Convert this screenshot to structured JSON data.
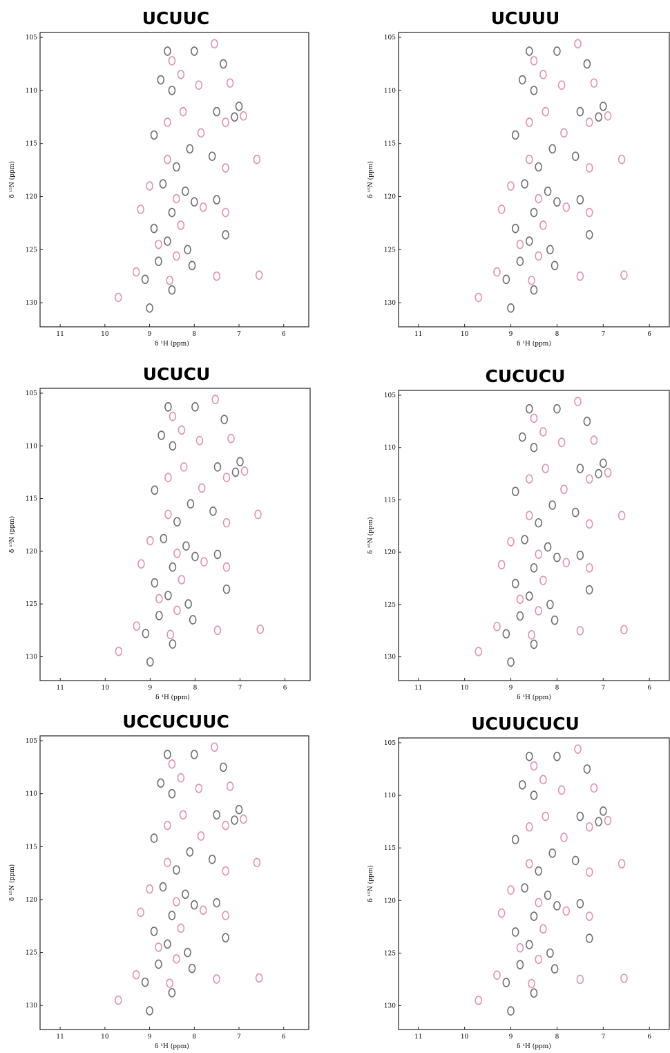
{
  "chart_data": [
    {
      "type": "scatter",
      "title": "UCUUC",
      "x_label": "δ ¹H (ppm)",
      "y_label": "δ ¹⁵N (ppm)",
      "xlim": [
        11.45,
        5.44
      ],
      "ylim": [
        104.54,
        132.27
      ],
      "xticks": [
        11,
        10,
        9,
        8,
        7,
        6
      ],
      "yticks": [
        105,
        110,
        115,
        120,
        125,
        130
      ],
      "series": [
        {
          "color": "#555555",
          "x": [
            8.6,
            8.0,
            7.35,
            8.75,
            8.5,
            7.5,
            7.1,
            7.0,
            8.9,
            8.1,
            7.6,
            8.4,
            8.7,
            8.2,
            8.0,
            7.5,
            8.5,
            8.9,
            8.6,
            7.3,
            8.15,
            8.8,
            9.1,
            8.05,
            8.5,
            9.0
          ],
          "values": [
            106.3,
            106.3,
            107.5,
            109.0,
            110.0,
            112.0,
            112.5,
            111.5,
            114.2,
            115.5,
            116.2,
            117.2,
            118.8,
            119.5,
            120.5,
            120.3,
            121.5,
            123.0,
            124.2,
            123.6,
            125.0,
            126.1,
            127.8,
            126.5,
            128.8,
            130.5
          ]
        },
        {
          "color": "#d9809e",
          "x": [
            8.5,
            7.55,
            8.3,
            7.9,
            7.2,
            8.25,
            7.3,
            6.9,
            8.6,
            7.85,
            8.6,
            7.3,
            6.6,
            9.0,
            8.4,
            7.8,
            9.2,
            8.3,
            7.3,
            8.8,
            8.4,
            9.3,
            8.55,
            7.5,
            9.7,
            6.55
          ],
          "values": [
            107.2,
            105.6,
            108.5,
            109.5,
            109.3,
            112.0,
            113.0,
            112.4,
            113.0,
            114.0,
            116.5,
            117.3,
            116.5,
            119.0,
            120.2,
            121.0,
            121.2,
            122.7,
            121.5,
            124.5,
            125.6,
            127.1,
            127.9,
            127.5,
            129.5,
            127.4
          ]
        }
      ]
    },
    {
      "type": "scatter",
      "title": "UCUUU",
      "x_label": "δ ¹H (ppm)",
      "y_label": "δ ¹⁵N (ppm)",
      "xlim": [
        11.43,
        5.57
      ],
      "ylim": [
        104.54,
        132.27
      ],
      "xticks": [
        11,
        10,
        9,
        8,
        7,
        6
      ],
      "yticks": [
        105,
        110,
        115,
        120,
        125,
        130
      ],
      "series": [
        {
          "color": "#555555",
          "x": [
            8.6,
            8.0,
            7.35,
            8.75,
            8.5,
            7.5,
            7.1,
            7.0,
            8.9,
            8.1,
            7.6,
            8.4,
            8.7,
            8.2,
            8.0,
            7.5,
            8.5,
            8.9,
            8.6,
            7.3,
            8.15,
            8.8,
            9.1,
            8.05,
            8.5,
            9.0
          ],
          "values": [
            106.3,
            106.3,
            107.5,
            109.0,
            110.0,
            112.0,
            112.5,
            111.5,
            114.2,
            115.5,
            116.2,
            117.2,
            118.8,
            119.5,
            120.5,
            120.3,
            121.5,
            123.0,
            124.2,
            123.6,
            125.0,
            126.1,
            127.8,
            126.5,
            128.8,
            130.5
          ]
        },
        {
          "color": "#d9809e",
          "x": [
            8.5,
            7.55,
            8.3,
            7.9,
            7.2,
            8.25,
            7.3,
            6.9,
            8.6,
            7.85,
            8.6,
            7.3,
            6.6,
            9.0,
            8.4,
            7.8,
            9.2,
            8.3,
            7.3,
            8.8,
            8.4,
            9.3,
            8.55,
            7.5,
            9.7,
            6.55
          ],
          "values": [
            107.2,
            105.6,
            108.5,
            109.5,
            109.3,
            112.0,
            113.0,
            112.4,
            113.0,
            114.0,
            116.5,
            117.3,
            116.5,
            119.0,
            120.2,
            121.0,
            121.2,
            122.7,
            121.5,
            124.5,
            125.6,
            127.1,
            127.9,
            127.5,
            129.5,
            127.4
          ]
        }
      ]
    },
    {
      "type": "scatter",
      "title": "UCUCU",
      "x_label": "δ ¹H (ppm)",
      "y_label": "δ ¹⁵N (ppm)",
      "xlim": [
        11.45,
        5.44
      ],
      "ylim": [
        104.54,
        132.27
      ],
      "xticks": [
        11,
        10,
        9,
        8,
        7,
        6
      ],
      "yticks": [
        105,
        110,
        115,
        120,
        125,
        130
      ],
      "series": [
        {
          "color": "#555555",
          "x": [
            8.6,
            8.0,
            7.35,
            8.75,
            8.5,
            7.5,
            7.1,
            7.0,
            8.9,
            8.1,
            7.6,
            8.4,
            8.7,
            8.2,
            8.0,
            7.5,
            8.5,
            8.9,
            8.6,
            7.3,
            8.15,
            8.8,
            9.1,
            8.05,
            8.5,
            9.0
          ],
          "values": [
            106.3,
            106.3,
            107.5,
            109.0,
            110.0,
            112.0,
            112.5,
            111.5,
            114.2,
            115.5,
            116.2,
            117.2,
            118.8,
            119.5,
            120.5,
            120.3,
            121.5,
            123.0,
            124.2,
            123.6,
            125.0,
            126.1,
            127.8,
            126.5,
            128.8,
            130.5
          ]
        },
        {
          "color": "#d9809e",
          "x": [
            8.5,
            7.55,
            8.3,
            7.9,
            7.2,
            8.25,
            7.3,
            6.9,
            8.6,
            7.85,
            8.6,
            7.3,
            6.6,
            9.0,
            8.4,
            7.8,
            9.2,
            8.3,
            7.3,
            8.8,
            8.4,
            9.3,
            8.55,
            7.5,
            9.7,
            6.55
          ],
          "values": [
            107.2,
            105.6,
            108.5,
            109.5,
            109.3,
            112.0,
            113.0,
            112.4,
            113.0,
            114.0,
            116.5,
            117.3,
            116.5,
            119.0,
            120.2,
            121.0,
            121.2,
            122.7,
            121.5,
            124.5,
            125.6,
            127.1,
            127.9,
            127.5,
            129.5,
            127.4
          ]
        }
      ]
    },
    {
      "type": "scatter",
      "title": "CUCUCU",
      "x_label": "δ ¹H (ppm)",
      "y_label": "δ ¹⁵N (ppm)",
      "xlim": [
        11.43,
        5.57
      ],
      "ylim": [
        104.54,
        132.27
      ],
      "xticks": [
        11,
        10,
        9,
        8,
        7,
        6
      ],
      "yticks": [
        105,
        110,
        115,
        120,
        125,
        130
      ],
      "series": [
        {
          "color": "#555555",
          "x": [
            8.6,
            8.0,
            7.35,
            8.75,
            8.5,
            7.5,
            7.1,
            7.0,
            8.9,
            8.1,
            7.6,
            8.4,
            8.7,
            8.2,
            8.0,
            7.5,
            8.5,
            8.9,
            8.6,
            7.3,
            8.15,
            8.8,
            9.1,
            8.05,
            8.5,
            9.0
          ],
          "values": [
            106.3,
            106.3,
            107.5,
            109.0,
            110.0,
            112.0,
            112.5,
            111.5,
            114.2,
            115.5,
            116.2,
            117.2,
            118.8,
            119.5,
            120.5,
            120.3,
            121.5,
            123.0,
            124.2,
            123.6,
            125.0,
            126.1,
            127.8,
            126.5,
            128.8,
            130.5
          ]
        },
        {
          "color": "#d9809e",
          "x": [
            8.5,
            7.55,
            8.3,
            7.9,
            7.2,
            8.25,
            7.3,
            6.9,
            8.6,
            7.85,
            8.6,
            7.3,
            6.6,
            9.0,
            8.4,
            7.8,
            9.2,
            8.3,
            7.3,
            8.8,
            8.4,
            9.3,
            8.55,
            7.5,
            9.7,
            6.55
          ],
          "values": [
            107.2,
            105.6,
            108.5,
            109.5,
            109.3,
            112.0,
            113.0,
            112.4,
            113.0,
            114.0,
            116.5,
            117.3,
            116.5,
            119.0,
            120.2,
            121.0,
            121.2,
            122.7,
            121.5,
            124.5,
            125.6,
            127.1,
            127.9,
            127.5,
            129.5,
            127.4
          ]
        }
      ]
    },
    {
      "type": "scatter",
      "title": "UCCUCUUC",
      "x_label": "δ ¹H (ppm)",
      "y_label": "δ ¹⁵N (ppm)",
      "xlim": [
        11.45,
        5.44
      ],
      "ylim": [
        104.54,
        132.27
      ],
      "xticks": [
        11,
        10,
        9,
        8,
        7,
        6
      ],
      "yticks": [
        105,
        110,
        115,
        120,
        125,
        130
      ],
      "series": [
        {
          "color": "#555555",
          "x": [
            8.6,
            8.0,
            7.35,
            8.75,
            8.5,
            7.5,
            7.1,
            7.0,
            8.9,
            8.1,
            7.6,
            8.4,
            8.7,
            8.2,
            8.0,
            7.5,
            8.5,
            8.9,
            8.6,
            7.3,
            8.15,
            8.8,
            9.1,
            8.05,
            8.5,
            9.0
          ],
          "values": [
            106.3,
            106.3,
            107.5,
            109.0,
            110.0,
            112.0,
            112.5,
            111.5,
            114.2,
            115.5,
            116.2,
            117.2,
            118.8,
            119.5,
            120.5,
            120.3,
            121.5,
            123.0,
            124.2,
            123.6,
            125.0,
            126.1,
            127.8,
            126.5,
            128.8,
            130.5
          ]
        },
        {
          "color": "#d9809e",
          "x": [
            8.5,
            7.55,
            8.3,
            7.9,
            7.2,
            8.25,
            7.3,
            6.9,
            8.6,
            7.85,
            8.6,
            7.3,
            6.6,
            9.0,
            8.4,
            7.8,
            9.2,
            8.3,
            7.3,
            8.8,
            8.4,
            9.3,
            8.55,
            7.5,
            9.7,
            6.55
          ],
          "values": [
            107.2,
            105.6,
            108.5,
            109.5,
            109.3,
            112.0,
            113.0,
            112.4,
            113.0,
            114.0,
            116.5,
            117.3,
            116.5,
            119.0,
            120.2,
            121.0,
            121.2,
            122.7,
            121.5,
            124.5,
            125.6,
            127.1,
            127.9,
            127.5,
            129.5,
            127.4
          ]
        }
      ]
    },
    {
      "type": "scatter",
      "title": "UCUUCUCU",
      "x_label": "δ ¹H (ppm)",
      "y_label": "δ ¹⁵N (ppm)",
      "xlim": [
        11.43,
        5.57
      ],
      "ylim": [
        104.54,
        132.27
      ],
      "xticks": [
        11,
        10,
        9,
        8,
        7,
        6
      ],
      "yticks": [
        105,
        110,
        115,
        120,
        125,
        130
      ],
      "series": [
        {
          "color": "#555555",
          "x": [
            8.6,
            8.0,
            7.35,
            8.75,
            8.5,
            7.5,
            7.1,
            7.0,
            8.9,
            8.1,
            7.6,
            8.4,
            8.7,
            8.2,
            8.0,
            7.5,
            8.5,
            8.9,
            8.6,
            7.3,
            8.15,
            8.8,
            9.1,
            8.05,
            8.5,
            9.0
          ],
          "values": [
            106.3,
            106.3,
            107.5,
            109.0,
            110.0,
            112.0,
            112.5,
            111.5,
            114.2,
            115.5,
            116.2,
            117.2,
            118.8,
            119.5,
            120.5,
            120.3,
            121.5,
            123.0,
            124.2,
            123.6,
            125.0,
            126.1,
            127.8,
            126.5,
            128.8,
            130.5
          ]
        },
        {
          "color": "#d9809e",
          "x": [
            8.5,
            7.55,
            8.3,
            7.9,
            7.2,
            8.25,
            7.3,
            6.9,
            8.6,
            7.85,
            8.6,
            7.3,
            6.6,
            9.0,
            8.4,
            7.8,
            9.2,
            8.3,
            7.3,
            8.8,
            8.4,
            9.3,
            8.55,
            7.5,
            9.7,
            6.55
          ],
          "values": [
            107.2,
            105.6,
            108.5,
            109.5,
            109.3,
            112.0,
            113.0,
            112.4,
            113.0,
            114.0,
            116.5,
            117.3,
            116.5,
            119.0,
            120.2,
            121.0,
            121.2,
            122.7,
            121.5,
            124.5,
            125.6,
            127.1,
            127.9,
            127.5,
            129.5,
            127.4
          ]
        }
      ]
    }
  ]
}
